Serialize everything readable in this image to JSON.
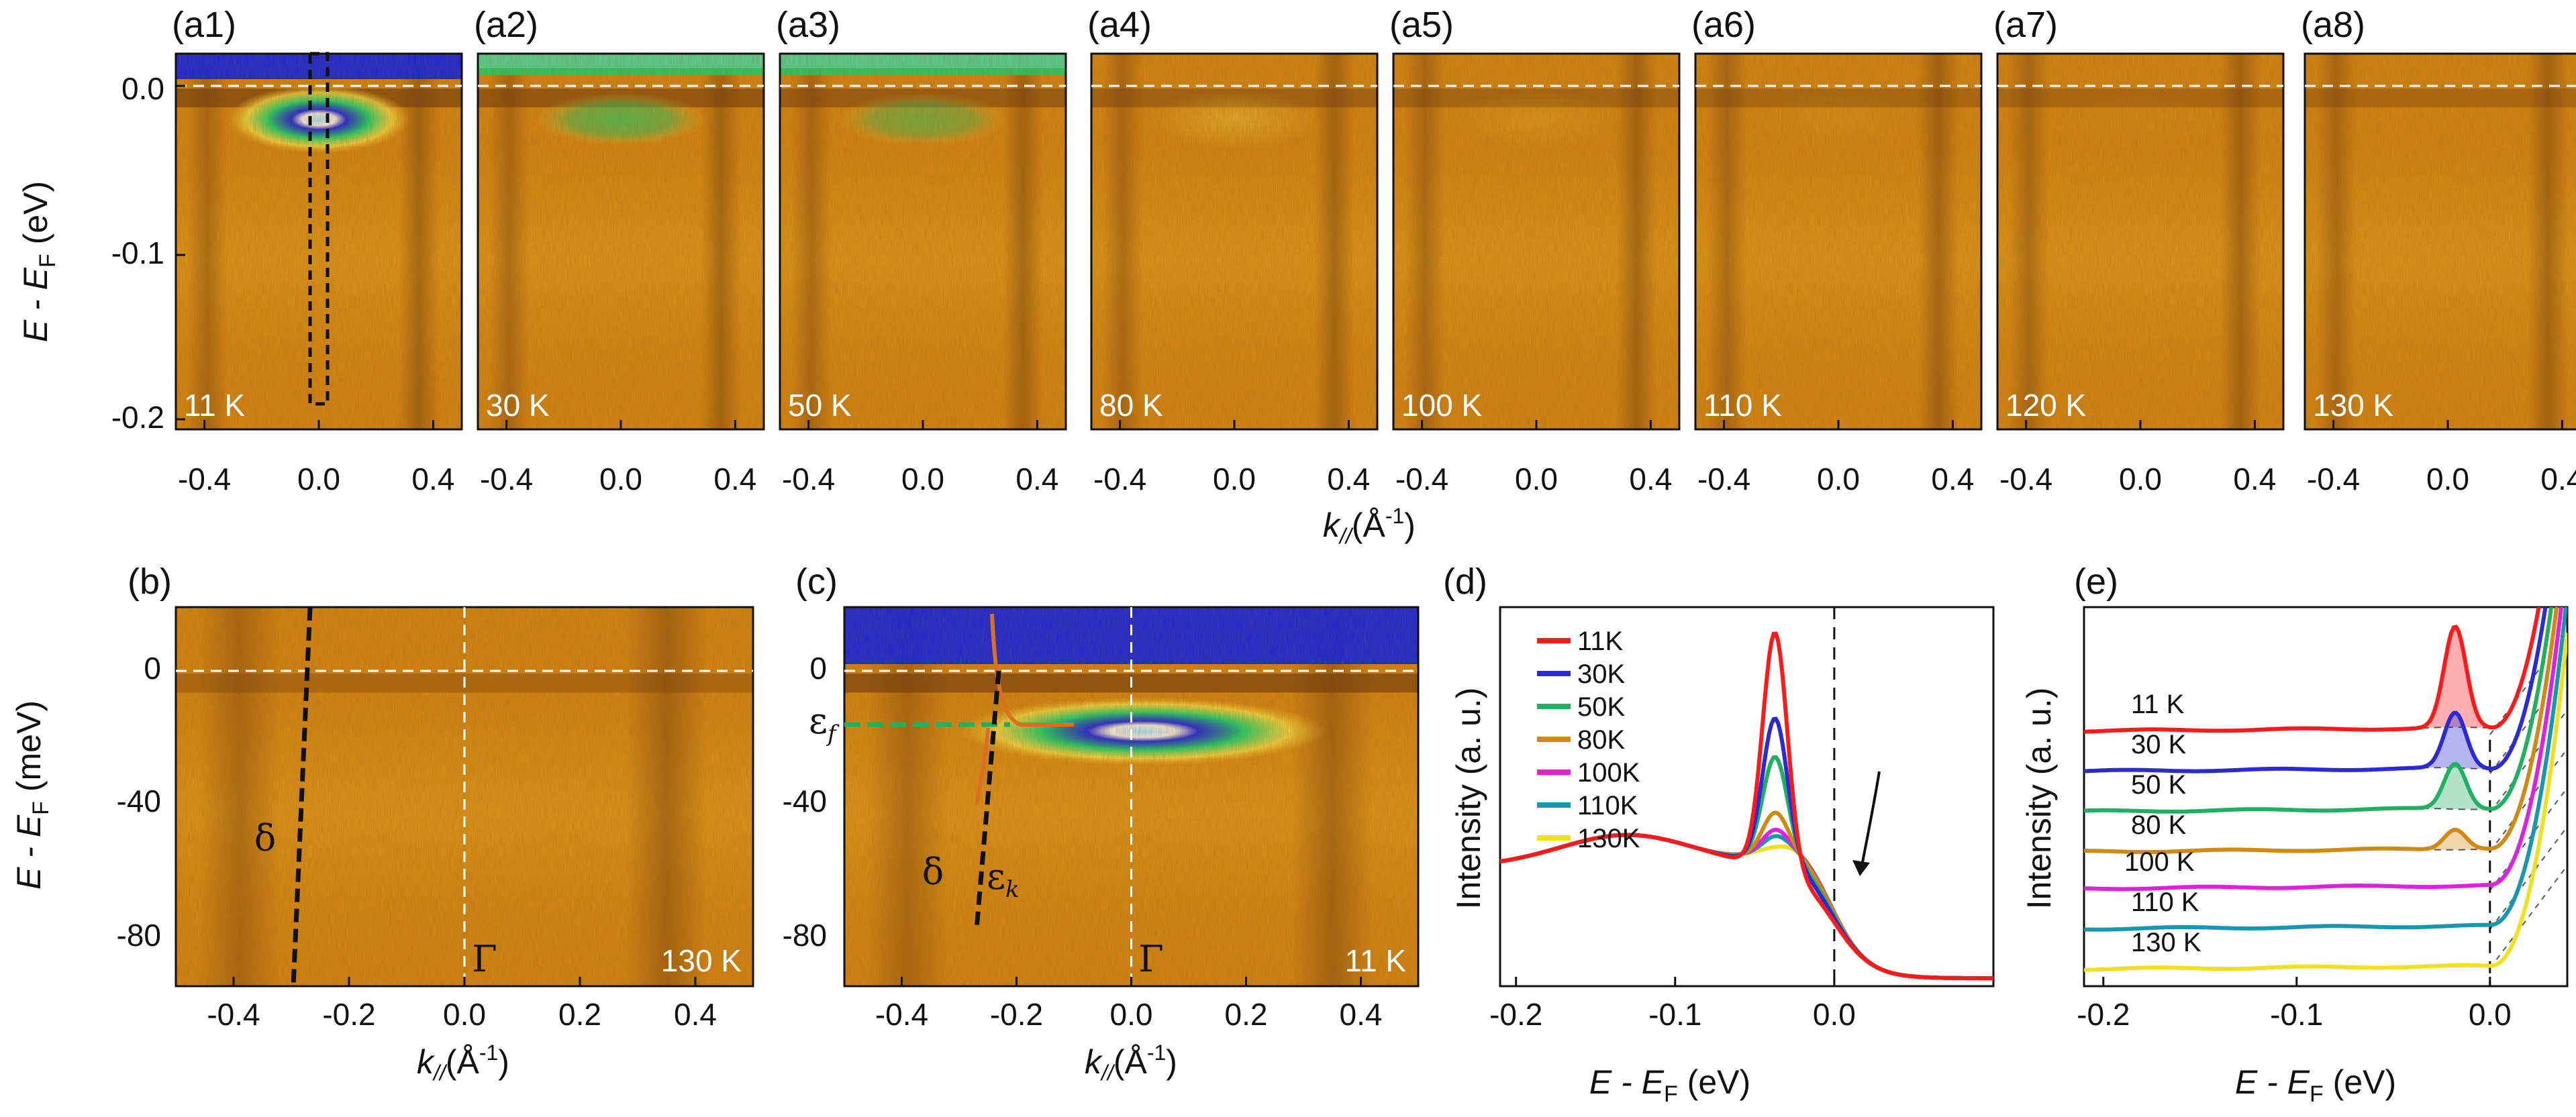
{
  "colors": {
    "map_base": "#d9860f",
    "map_bright": "#f6b520",
    "map_dark": "#6b3508",
    "map_green": "#1fd36a",
    "map_blue": "#0b1cf0",
    "map_cyan": "#a8e6ff",
    "map_yellow": "#ffe84a",
    "fit_line": "#d8701f"
  },
  "top_row": {
    "ylabel": "E - E",
    "ylabel_sub": "F",
    "ylabel_unit": " (eV)",
    "yticks": [
      "0.0",
      "-0.1",
      "-0.2"
    ],
    "xticks": [
      "-0.4",
      "0.0",
      "0.4"
    ],
    "xlabel": "k",
    "xlabel_sub": "//",
    "xlabel_unit": "(Å",
    "xlabel_sup": "-1",
    "xlabel_close": ")",
    "panels": [
      {
        "label": "(a1)",
        "temp": "11 K",
        "level": 1.0
      },
      {
        "label": "(a2)",
        "temp": "30 K",
        "level": 0.8
      },
      {
        "label": "(a3)",
        "temp": "50 K",
        "level": 0.6
      },
      {
        "label": "(a4)",
        "temp": "80 K",
        "level": 0.35
      },
      {
        "label": "(a5)",
        "temp": "100 K",
        "level": 0.15
      },
      {
        "label": "(a6)",
        "temp": "110 K",
        "level": 0.08
      },
      {
        "label": "(a7)",
        "temp": "120 K",
        "level": 0.04
      },
      {
        "label": "(a8)",
        "temp": "130 K",
        "level": 0.0
      }
    ]
  },
  "panel_b": {
    "label": "(b)",
    "temp": "130 K",
    "ylabel": "E - E",
    "ylabel_sub": "F",
    "ylabel_unit": " (meV)",
    "yticks": [
      "0",
      "-40",
      "-80"
    ],
    "xticks": [
      "-0.4",
      "-0.2",
      "0.0",
      "0.2",
      "0.4"
    ],
    "xlabel": "k",
    "xlabel_sub": "//",
    "xlabel_unit": "(Å",
    "xlabel_sup": "-1",
    "xlabel_close": ")",
    "delta": "δ",
    "gamma": "Γ"
  },
  "panel_c": {
    "label": "(c)",
    "temp": "11 K",
    "yticks": [
      "0",
      "-40",
      "-80"
    ],
    "xticks": [
      "-0.4",
      "-0.2",
      "0.0",
      "0.2",
      "0.4"
    ],
    "xlabel": "k",
    "xlabel_sub": "//",
    "xlabel_unit": "(Å",
    "xlabel_sup": "-1",
    "xlabel_close": ")",
    "eps_f": "ε",
    "eps_f_sub": "f",
    "eps_k": "ε",
    "eps_k_sub": "k",
    "delta": "δ",
    "gamma": "Γ"
  },
  "chart_data": [
    {
      "type": "line",
      "panel": "(d)",
      "xlabel": "E - E",
      "xlabel_sub": "F",
      "xlabel_unit": " (eV)",
      "ylabel": "Intensity (a. u.)",
      "xlim": [
        -0.21,
        0.1
      ],
      "xticks": [
        "-0.2",
        "-0.1",
        "0.0"
      ],
      "legend_position": "top-left",
      "series": [
        {
          "name": "11K",
          "color": "#ff1a1a",
          "peak": 1.0
        },
        {
          "name": "30K",
          "color": "#2b2bd6",
          "peak": 0.6
        },
        {
          "name": "50K",
          "color": "#1fb060",
          "peak": 0.42
        },
        {
          "name": "80K",
          "color": "#d08a12",
          "peak": 0.16
        },
        {
          "name": "100K",
          "color": "#e020e0",
          "peak": 0.08
        },
        {
          "name": "110K",
          "color": "#1898b0",
          "peak": 0.05
        },
        {
          "name": "130K",
          "color": "#f0e020",
          "peak": 0.0
        }
      ]
    },
    {
      "type": "line",
      "panel": "(e)",
      "xlabel": "E - E",
      "xlabel_sub": "F",
      "xlabel_unit": " (eV)",
      "ylabel": "Intensity (a. u.)",
      "xlim": [
        -0.21,
        0.04
      ],
      "xticks": [
        "-0.2",
        "-0.1",
        "0.0"
      ],
      "series": [
        {
          "name": "11 K",
          "color": "#ff1a1a",
          "peak": 1.0
        },
        {
          "name": "30 K",
          "color": "#2b2bd6",
          "peak": 0.55
        },
        {
          "name": "50 K",
          "color": "#1fb060",
          "peak": 0.45
        },
        {
          "name": "80 K",
          "color": "#d08a12",
          "peak": 0.2
        },
        {
          "name": "100 K",
          "color": "#e020e0",
          "peak": 0.0
        },
        {
          "name": "110 K",
          "color": "#1898b0",
          "peak": 0.0
        },
        {
          "name": "130 K",
          "color": "#f0e020",
          "peak": 0.0
        }
      ]
    }
  ]
}
